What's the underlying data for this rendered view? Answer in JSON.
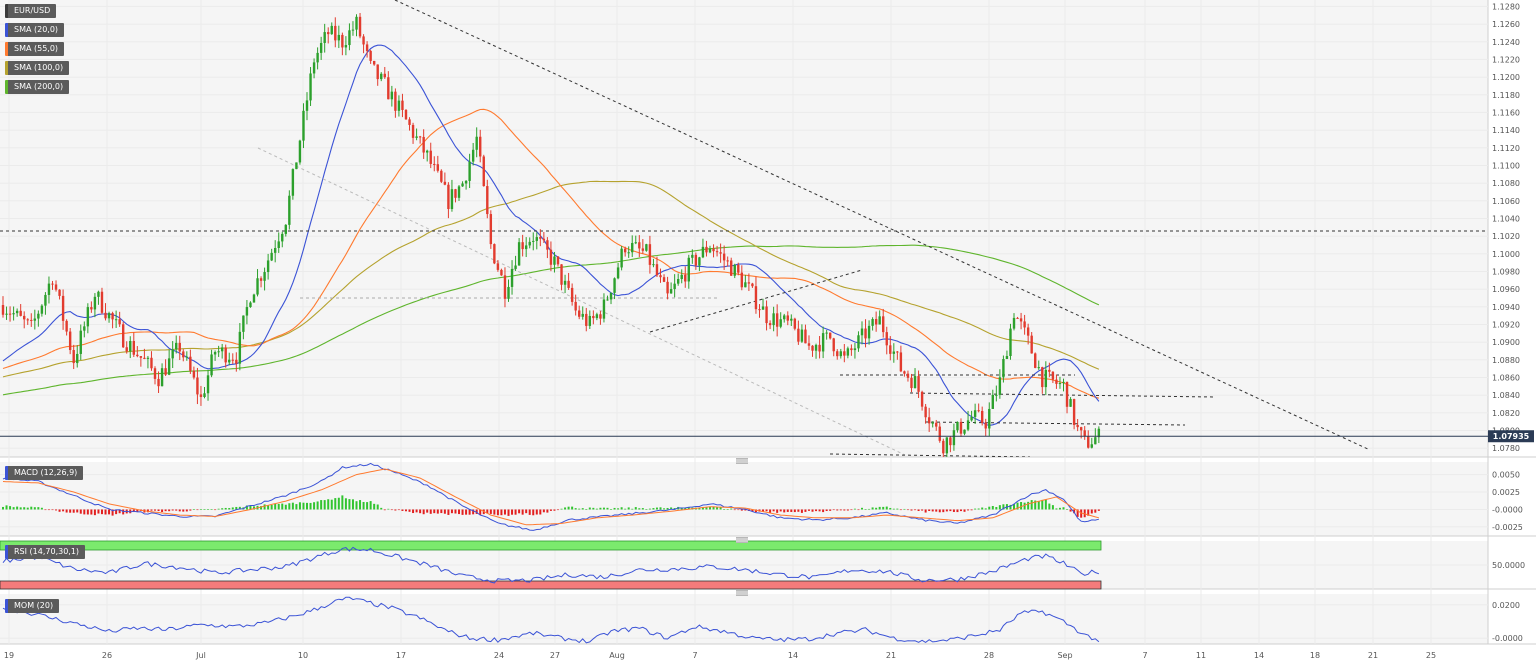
{
  "colors": {
    "up": "#2ca02c",
    "down": "#e23b2e",
    "sma20": "#3b53d6",
    "sma55": "#ff7a2f",
    "sma100": "#b5a22e",
    "sma200": "#5fb52d",
    "macd_line": "#3b53d6",
    "macd_signal": "#ff7a2f",
    "hist_pos": "#31c42f",
    "hist_neg": "#e21f1f",
    "rsi_line": "#3b53d6",
    "rsi_overbought": "#7bea6d",
    "rsi_oversold": "#f47b7b",
    "mom_line": "#3b53d6",
    "price_marker": "#2b3b55"
  },
  "legend": {
    "pair": "EUR/USD",
    "sma20": "SMA (20,0)",
    "sma55": "SMA (55,0)",
    "sma100": "SMA (100,0)",
    "sma200": "SMA (200,0)"
  },
  "chart_data": [
    {
      "type": "candlestick",
      "ylim": [
        1.077,
        1.1285
      ],
      "yticks": [
        "1.1280",
        "1.1260",
        "1.1240",
        "1.1220",
        "1.1200",
        "1.1180",
        "1.1160",
        "1.1140",
        "1.1120",
        "1.1100",
        "1.1080",
        "1.1060",
        "1.1040",
        "1.1020",
        "1.1000",
        "1.0980",
        "1.0960",
        "1.0940",
        "1.0920",
        "1.0900",
        "1.0880",
        "1.0860",
        "1.0840",
        "1.0820",
        "1.0800",
        "1.0780"
      ],
      "x_labels": [
        "19",
        "26",
        "Jul",
        "10",
        "17",
        "24",
        "27",
        "Aug",
        "7",
        "14",
        "21",
        "28",
        "Sep",
        "7",
        "11",
        "14",
        "18",
        "21",
        "25"
      ],
      "last_price": "1.07935",
      "last_value": 1.07935,
      "anchors": [
        [
          0,
          1.0942
        ],
        [
          8,
          1.0915
        ],
        [
          14,
          1.0975
        ],
        [
          20,
          1.088
        ],
        [
          26,
          1.0955
        ],
        [
          34,
          1.0905
        ],
        [
          44,
          1.086
        ],
        [
          50,
          1.0895
        ],
        [
          56,
          1.0835
        ],
        [
          60,
          1.089
        ],
        [
          66,
          1.0885
        ],
        [
          70,
          1.0955
        ],
        [
          74,
          1.0985
        ],
        [
          80,
          1.104
        ],
        [
          84,
          1.113
        ],
        [
          88,
          1.122
        ],
        [
          92,
          1.125
        ],
        [
          96,
          1.124
        ],
        [
          100,
          1.126
        ],
        [
          104,
          1.121
        ],
        [
          108,
          1.119
        ],
        [
          114,
          1.115
        ],
        [
          120,
          1.111
        ],
        [
          126,
          1.106
        ],
        [
          130,
          1.108
        ],
        [
          134,
          1.113
        ],
        [
          138,
          1.101
        ],
        [
          142,
          1.096
        ],
        [
          146,
          1.101
        ],
        [
          150,
          1.102
        ],
        [
          156,
          1.099
        ],
        [
          162,
          1.0935
        ],
        [
          166,
          1.092
        ],
        [
          170,
          1.094
        ],
        [
          176,
          1.101
        ],
        [
          182,
          1.1
        ],
        [
          188,
          1.095
        ],
        [
          194,
          1.0985
        ],
        [
          200,
          1.101
        ],
        [
          206,
          1.0985
        ],
        [
          210,
          1.0965
        ],
        [
          216,
          1.093
        ],
        [
          222,
          1.092
        ],
        [
          228,
          1.0895
        ],
        [
          234,
          1.0905
        ],
        [
          238,
          1.088
        ],
        [
          244,
          1.091
        ],
        [
          248,
          1.0925
        ],
        [
          254,
          1.087
        ],
        [
          258,
          1.0855
        ],
        [
          262,
          1.0815
        ],
        [
          266,
          1.0785
        ],
        [
          270,
          1.08
        ],
        [
          274,
          1.0815
        ],
        [
          278,
          1.081
        ],
        [
          282,
          1.0855
        ],
        [
          286,
          1.0935
        ],
        [
          290,
          1.09
        ],
        [
          294,
          1.086
        ],
        [
          300,
          1.085
        ],
        [
          304,
          1.08
        ],
        [
          306,
          1.0785
        ],
        [
          310,
          1.0793
        ]
      ]
    },
    {
      "type": "line",
      "name": "MACD (12,26,9)",
      "yticks": [
        "0.0050",
        "0.0025",
        "-0.0000",
        "-0.0025"
      ],
      "ylim": [
        -0.0038,
        0.0068
      ],
      "macd_anchors": [
        [
          0,
          0.0045
        ],
        [
          10,
          0.004
        ],
        [
          20,
          0.002
        ],
        [
          30,
          0.0
        ],
        [
          40,
          -0.0005
        ],
        [
          50,
          -0.001
        ],
        [
          60,
          -0.001
        ],
        [
          70,
          0.0005
        ],
        [
          80,
          0.002
        ],
        [
          90,
          0.004
        ],
        [
          96,
          0.006
        ],
        [
          104,
          0.0065
        ],
        [
          110,
          0.0055
        ],
        [
          120,
          0.0035
        ],
        [
          130,
          0.0005
        ],
        [
          140,
          -0.002
        ],
        [
          150,
          -0.003
        ],
        [
          160,
          -0.0015
        ],
        [
          170,
          -0.001
        ],
        [
          180,
          -0.0005
        ],
        [
          190,
          0.0
        ],
        [
          200,
          0.0008
        ],
        [
          210,
          0.0
        ],
        [
          220,
          -0.0012
        ],
        [
          230,
          -0.0015
        ],
        [
          240,
          -0.0012
        ],
        [
          250,
          -0.0005
        ],
        [
          260,
          -0.0015
        ],
        [
          270,
          -0.002
        ],
        [
          280,
          -0.0008
        ],
        [
          290,
          0.002
        ],
        [
          295,
          0.0028
        ],
        [
          300,
          0.0015
        ],
        [
          305,
          -0.0018
        ],
        [
          310,
          -0.0015
        ]
      ],
      "signal_anchors": [
        [
          0,
          0.004
        ],
        [
          10,
          0.0038
        ],
        [
          20,
          0.0025
        ],
        [
          30,
          0.0008
        ],
        [
          40,
          -0.0002
        ],
        [
          50,
          -0.0008
        ],
        [
          60,
          -0.001
        ],
        [
          70,
          0.0
        ],
        [
          80,
          0.0012
        ],
        [
          90,
          0.0028
        ],
        [
          100,
          0.005
        ],
        [
          108,
          0.0058
        ],
        [
          118,
          0.0045
        ],
        [
          128,
          0.0018
        ],
        [
          138,
          -0.0008
        ],
        [
          148,
          -0.0022
        ],
        [
          158,
          -0.002
        ],
        [
          168,
          -0.0012
        ],
        [
          178,
          -0.0008
        ],
        [
          190,
          -0.0002
        ],
        [
          200,
          0.0004
        ],
        [
          210,
          0.0002
        ],
        [
          220,
          -0.0008
        ],
        [
          230,
          -0.0012
        ],
        [
          240,
          -0.0012
        ],
        [
          250,
          -0.0008
        ],
        [
          260,
          -0.0012
        ],
        [
          270,
          -0.0016
        ],
        [
          280,
          -0.0012
        ],
        [
          290,
          0.0008
        ],
        [
          298,
          0.0018
        ],
        [
          305,
          -0.0005
        ],
        [
          310,
          -0.0012
        ]
      ]
    },
    {
      "type": "line",
      "name": "RSI (14,70,30,1)",
      "yticks": [
        "50.0000"
      ],
      "ylim": [
        20,
        80
      ],
      "anchors": [
        [
          0,
          55
        ],
        [
          10,
          60
        ],
        [
          20,
          45
        ],
        [
          30,
          40
        ],
        [
          40,
          52
        ],
        [
          50,
          47
        ],
        [
          60,
          40
        ],
        [
          70,
          44
        ],
        [
          80,
          48
        ],
        [
          90,
          62
        ],
        [
          96,
          70
        ],
        [
          104,
          69
        ],
        [
          110,
          62
        ],
        [
          120,
          50
        ],
        [
          130,
          36
        ],
        [
          140,
          30
        ],
        [
          150,
          31
        ],
        [
          160,
          38
        ],
        [
          170,
          35
        ],
        [
          180,
          44
        ],
        [
          190,
          45
        ],
        [
          200,
          48
        ],
        [
          210,
          44
        ],
        [
          220,
          38
        ],
        [
          230,
          34
        ],
        [
          240,
          44
        ],
        [
          250,
          42
        ],
        [
          260,
          31
        ],
        [
          270,
          32
        ],
        [
          280,
          42
        ],
        [
          290,
          58
        ],
        [
          295,
          61
        ],
        [
          300,
          52
        ],
        [
          305,
          39
        ],
        [
          310,
          42
        ]
      ]
    },
    {
      "type": "line",
      "name": "MOM (20)",
      "yticks": [
        "0.0200",
        "-0.0000"
      ],
      "ylim": [
        -0.0035,
        0.0265
      ],
      "anchors": [
        [
          0,
          0.018
        ],
        [
          8,
          0.015
        ],
        [
          16,
          0.011
        ],
        [
          24,
          0.007
        ],
        [
          30,
          0.004
        ],
        [
          38,
          0.006
        ],
        [
          46,
          0.005
        ],
        [
          56,
          0.008
        ],
        [
          66,
          0.007
        ],
        [
          74,
          0.009
        ],
        [
          82,
          0.013
        ],
        [
          88,
          0.017
        ],
        [
          94,
          0.022
        ],
        [
          98,
          0.024
        ],
        [
          104,
          0.021
        ],
        [
          110,
          0.018
        ],
        [
          118,
          0.012
        ],
        [
          126,
          0.004
        ],
        [
          132,
          0.0
        ],
        [
          140,
          -0.001
        ],
        [
          150,
          0.003
        ],
        [
          158,
          0.0
        ],
        [
          166,
          -0.002
        ],
        [
          172,
          0.004
        ],
        [
          180,
          0.006
        ],
        [
          188,
          0.0
        ],
        [
          196,
          0.007
        ],
        [
          204,
          0.004
        ],
        [
          212,
          0.0
        ],
        [
          220,
          -0.001
        ],
        [
          228,
          -0.0005
        ],
        [
          236,
          0.003
        ],
        [
          244,
          0.005
        ],
        [
          252,
          0.0
        ],
        [
          260,
          -0.002
        ],
        [
          268,
          -0.001
        ],
        [
          276,
          0.002
        ],
        [
          282,
          0.005
        ],
        [
          288,
          0.015
        ],
        [
          294,
          0.016
        ],
        [
          300,
          0.01
        ],
        [
          306,
          0.002
        ],
        [
          310,
          -0.0015
        ]
      ]
    }
  ]
}
